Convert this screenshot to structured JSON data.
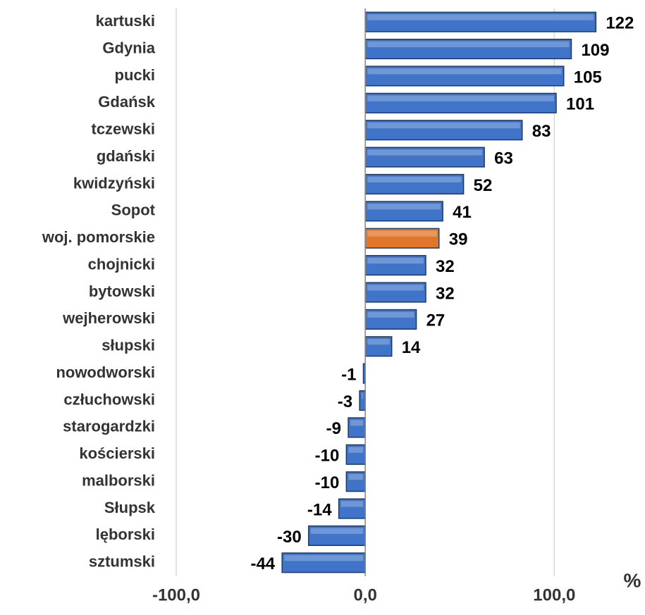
{
  "chart_data": {
    "type": "bar",
    "orientation": "horizontal",
    "categories": [
      "kartuski",
      "Gdynia",
      "pucki",
      "Gdańsk",
      "tczewski",
      "gdański",
      "kwidzyński",
      "Sopot",
      "woj. pomorskie",
      "chojnicki",
      "bytowski",
      "wejherowski",
      "słupski",
      "nowodworski",
      "człuchowski",
      "starogardzki",
      "kościerski",
      "malborski",
      "Słupsk",
      "lęborski",
      "sztumski"
    ],
    "values": [
      122,
      109,
      105,
      101,
      83,
      63,
      52,
      41,
      39,
      32,
      32,
      27,
      14,
      -1,
      -3,
      -9,
      -10,
      -10,
      -14,
      -30,
      -44
    ],
    "colors": [
      "#3f74c8",
      "#3f74c8",
      "#3f74c8",
      "#3f74c8",
      "#3f74c8",
      "#3f74c8",
      "#3f74c8",
      "#3f74c8",
      "#e0762a",
      "#3f74c8",
      "#3f74c8",
      "#3f74c8",
      "#3f74c8",
      "#3f74c8",
      "#3f74c8",
      "#3f74c8",
      "#3f74c8",
      "#3f74c8",
      "#3f74c8",
      "#3f74c8",
      "#3f74c8"
    ],
    "xlabel": "%",
    "xlim": [
      -100,
      145
    ],
    "xticks": [
      {
        "value": -100,
        "label": "-100,0"
      },
      {
        "value": 0,
        "label": "0,0"
      },
      {
        "value": 100,
        "label": "100,0"
      }
    ],
    "grid": true
  }
}
